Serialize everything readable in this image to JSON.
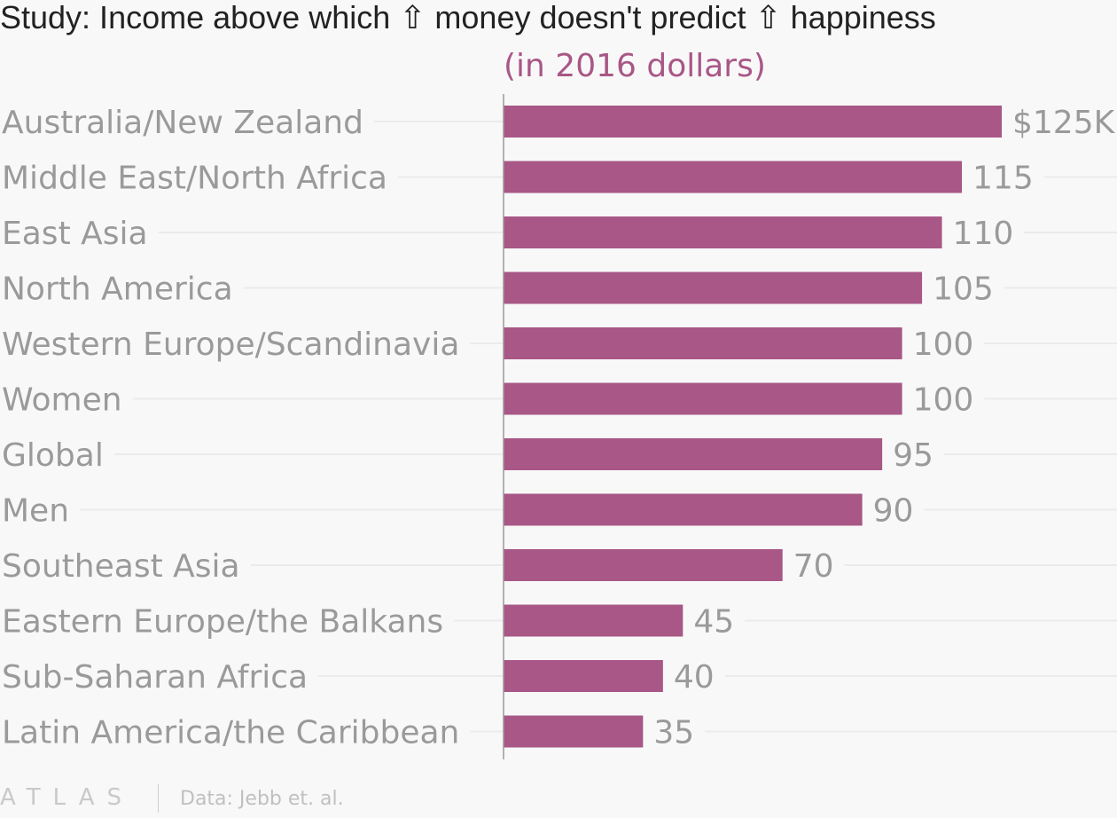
{
  "chart_data": {
    "type": "bar",
    "orientation": "horizontal",
    "title": "Study: Income above which ⇧ money doesn't predict ⇧ happiness",
    "subtitle": "(in 2016 dollars)",
    "categories": [
      "Australia/New Zealand",
      "Middle East/North Africa",
      "East Asia",
      "North America",
      "Western Europe/Scandinavia",
      "Women",
      "Global",
      "Men",
      "Southeast Asia",
      "Eastern Europe/the Balkans",
      "Sub-Saharan Africa",
      "Latin America/the Caribbean"
    ],
    "values": [
      125,
      115,
      110,
      105,
      100,
      100,
      95,
      90,
      70,
      45,
      40,
      35
    ],
    "value_labels": [
      "$125K",
      "115",
      "110",
      "105",
      "100",
      "100",
      "95",
      "90",
      "70",
      "45",
      "40",
      "35"
    ],
    "xlim": [
      0,
      125
    ],
    "grid": true,
    "colors": {
      "bar": "#a85786",
      "subtitle": "#a85786",
      "text": "#9a9a9a",
      "title": "#222222",
      "gridline": "#ebebeb",
      "axis": "#999999",
      "background": "#f9f8f9"
    }
  },
  "footer": {
    "logo": "ATLAS",
    "source": "Data: Jebb et. al."
  }
}
